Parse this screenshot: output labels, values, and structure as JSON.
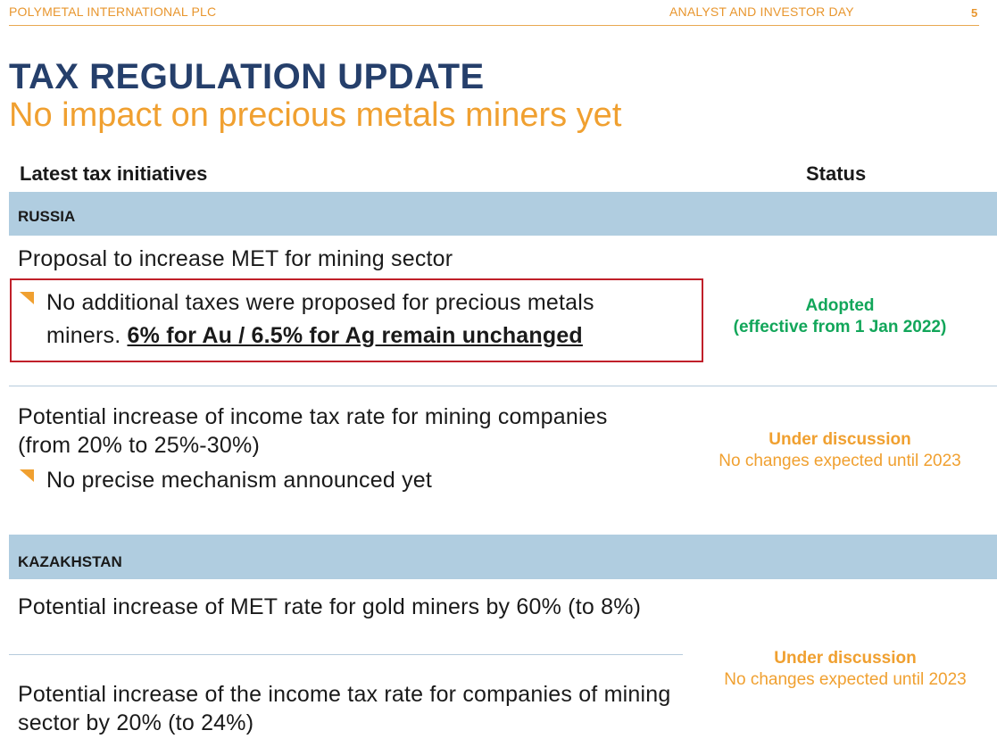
{
  "header": {
    "company": "POLYMETAL INTERNATIONAL PLC",
    "event": "ANALYST AND INVESTOR DAY",
    "page_number": "5"
  },
  "title": "TAX REGULATION UPDATE",
  "subtitle": "No impact on precious metals miners yet",
  "columns": {
    "initiatives": "Latest tax initiatives",
    "status": "Status"
  },
  "russia": {
    "label": "RUSSIA",
    "met": {
      "title": "Proposal to increase MET for mining sector",
      "bullet_prefix": "No additional taxes were proposed for precious metals miners. ",
      "bullet_highlight": "6% for Au / 6.5% for Ag remain unchanged",
      "status_main": "Adopted",
      "status_detail": "(effective from 1 Jan 2022)",
      "status_color": "#12a65a"
    },
    "income": {
      "title": "Potential increase of income tax rate for mining companies (from 20% to 25%-30%)",
      "bullet": "No precise mechanism announced yet",
      "status_main": "Under discussion",
      "status_detail": "No changes expected until 2023",
      "status_color": "#f0a030"
    }
  },
  "kazakhstan": {
    "label": "KAZAKHSTAN",
    "met": {
      "title": "Potential increase of MET rate for gold miners by 60% (to 8%)"
    },
    "income": {
      "title": "Potential increase of the income tax rate for companies of mining sector by 20%  (to 24%)"
    },
    "status_main": "Under discussion",
    "status_detail": "No changes expected until 2023",
    "status_color": "#f0a030"
  },
  "colors": {
    "brand_blue": "#253f6b",
    "accent_orange": "#f0a030",
    "band_blue": "#b0cde0",
    "highlight_red": "#c0202a"
  },
  "icons": {
    "bullet": "orange-triangle-bullet-icon"
  }
}
